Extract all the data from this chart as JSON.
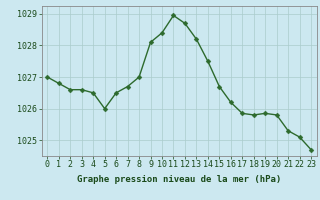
{
  "x": [
    0,
    1,
    2,
    3,
    4,
    5,
    6,
    7,
    8,
    9,
    10,
    11,
    12,
    13,
    14,
    15,
    16,
    17,
    18,
    19,
    20,
    21,
    22,
    23
  ],
  "y": [
    1027.0,
    1026.8,
    1026.6,
    1026.6,
    1026.5,
    1026.0,
    1026.5,
    1026.7,
    1027.0,
    1028.1,
    1028.4,
    1028.95,
    1028.7,
    1028.2,
    1027.5,
    1026.7,
    1026.2,
    1025.85,
    1025.8,
    1025.85,
    1025.8,
    1025.3,
    1025.1,
    1024.7
  ],
  "line_color": "#2d6a2d",
  "marker_color": "#2d6a2d",
  "bg_color": "#cce8f0",
  "grid_color": "#aacccc",
  "border_color": "#888888",
  "xlabel": "Graphe pression niveau de la mer (hPa)",
  "xlabel_color": "#1a4a1a",
  "tick_label_color": "#1a4a1a",
  "ylim": [
    1024.5,
    1029.25
  ],
  "yticks": [
    1025,
    1026,
    1027,
    1028,
    1029
  ],
  "xticks": [
    0,
    1,
    2,
    3,
    4,
    5,
    6,
    7,
    8,
    9,
    10,
    11,
    12,
    13,
    14,
    15,
    16,
    17,
    18,
    19,
    20,
    21,
    22,
    23
  ],
  "font_size_label": 6.5,
  "font_size_tick": 6.0,
  "line_width": 1.0,
  "marker_size": 2.5
}
